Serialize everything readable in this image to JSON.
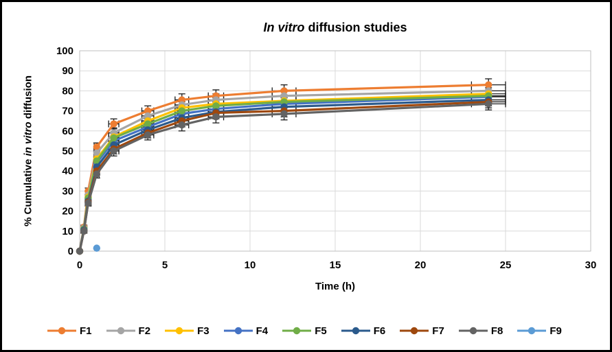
{
  "title": {
    "italic_part": "In vitro",
    "normal_part": " diffusion studies"
  },
  "y_axis": {
    "label_prefix": "% Cumulative ",
    "label_italic": "in vitro",
    "label_suffix": " diffusion"
  },
  "x_axis": {
    "label": "Time (h)"
  },
  "colors": {
    "grid": "#D9D9D9",
    "plot_border": "#BFBFBF",
    "error_bar": "#1a1a1a",
    "text": "#000000"
  },
  "chart_data": {
    "type": "line",
    "title": "In vitro diffusion studies",
    "xlabel": "Time (h)",
    "ylabel": "% Cumulative in vitro diffusion",
    "xlim": [
      0,
      30
    ],
    "ylim": [
      0,
      100
    ],
    "x_ticks": [
      0,
      5,
      10,
      15,
      20,
      25,
      30
    ],
    "y_ticks": [
      0,
      10,
      20,
      30,
      40,
      50,
      60,
      70,
      80,
      90,
      100
    ],
    "grid": true,
    "legend_position": "bottom",
    "x": [
      0,
      0.25,
      0.5,
      1,
      2,
      4,
      6,
      8,
      12,
      24
    ],
    "y_err": [
      0,
      1,
      1.5,
      2,
      2.5,
      2.5,
      3,
      3,
      3,
      3
    ],
    "x_err": [
      0,
      0,
      0,
      0.15,
      0.3,
      0.35,
      0.4,
      0.45,
      0.7,
      1
    ],
    "series": [
      {
        "name": "F1",
        "color": "#ED7D31",
        "values": [
          0,
          12,
          30,
          52,
          63.5,
          70,
          75.5,
          77.5,
          80,
          83
        ]
      },
      {
        "name": "F2",
        "color": "#A5A5A5",
        "values": [
          0,
          11.5,
          28,
          49,
          59,
          67.5,
          73,
          75.5,
          77.5,
          80
        ]
      },
      {
        "name": "F3",
        "color": "#FFC000",
        "values": [
          0,
          11,
          27,
          46,
          57,
          65,
          71.5,
          73.5,
          75,
          78.5
        ]
      },
      {
        "name": "F4",
        "color": "#4472C4",
        "values": [
          0,
          11,
          26,
          44,
          55,
          62,
          68.5,
          71,
          73.5,
          77
        ]
      },
      {
        "name": "F5",
        "color": "#70AD47",
        "values": [
          0,
          11,
          26.5,
          45,
          56.5,
          63.5,
          70,
          72.5,
          74.5,
          77.5
        ]
      },
      {
        "name": "F6",
        "color": "#2B5A8C",
        "values": [
          0,
          10.5,
          25,
          42,
          53,
          60.5,
          66.5,
          69.5,
          72,
          75.5
        ]
      },
      {
        "name": "F7",
        "color": "#9E480E",
        "values": [
          0,
          10,
          24.5,
          40,
          51,
          59,
          65,
          69,
          70,
          74.5
        ]
      },
      {
        "name": "F8",
        "color": "#636363",
        "values": [
          0,
          10,
          24,
          38.5,
          50,
          58,
          63,
          67,
          68.5,
          73.5
        ]
      },
      {
        "name": "F9",
        "color": "#5B9BD5",
        "x": [
          1
        ],
        "values": [
          1.5
        ],
        "error_bars": false
      }
    ]
  }
}
